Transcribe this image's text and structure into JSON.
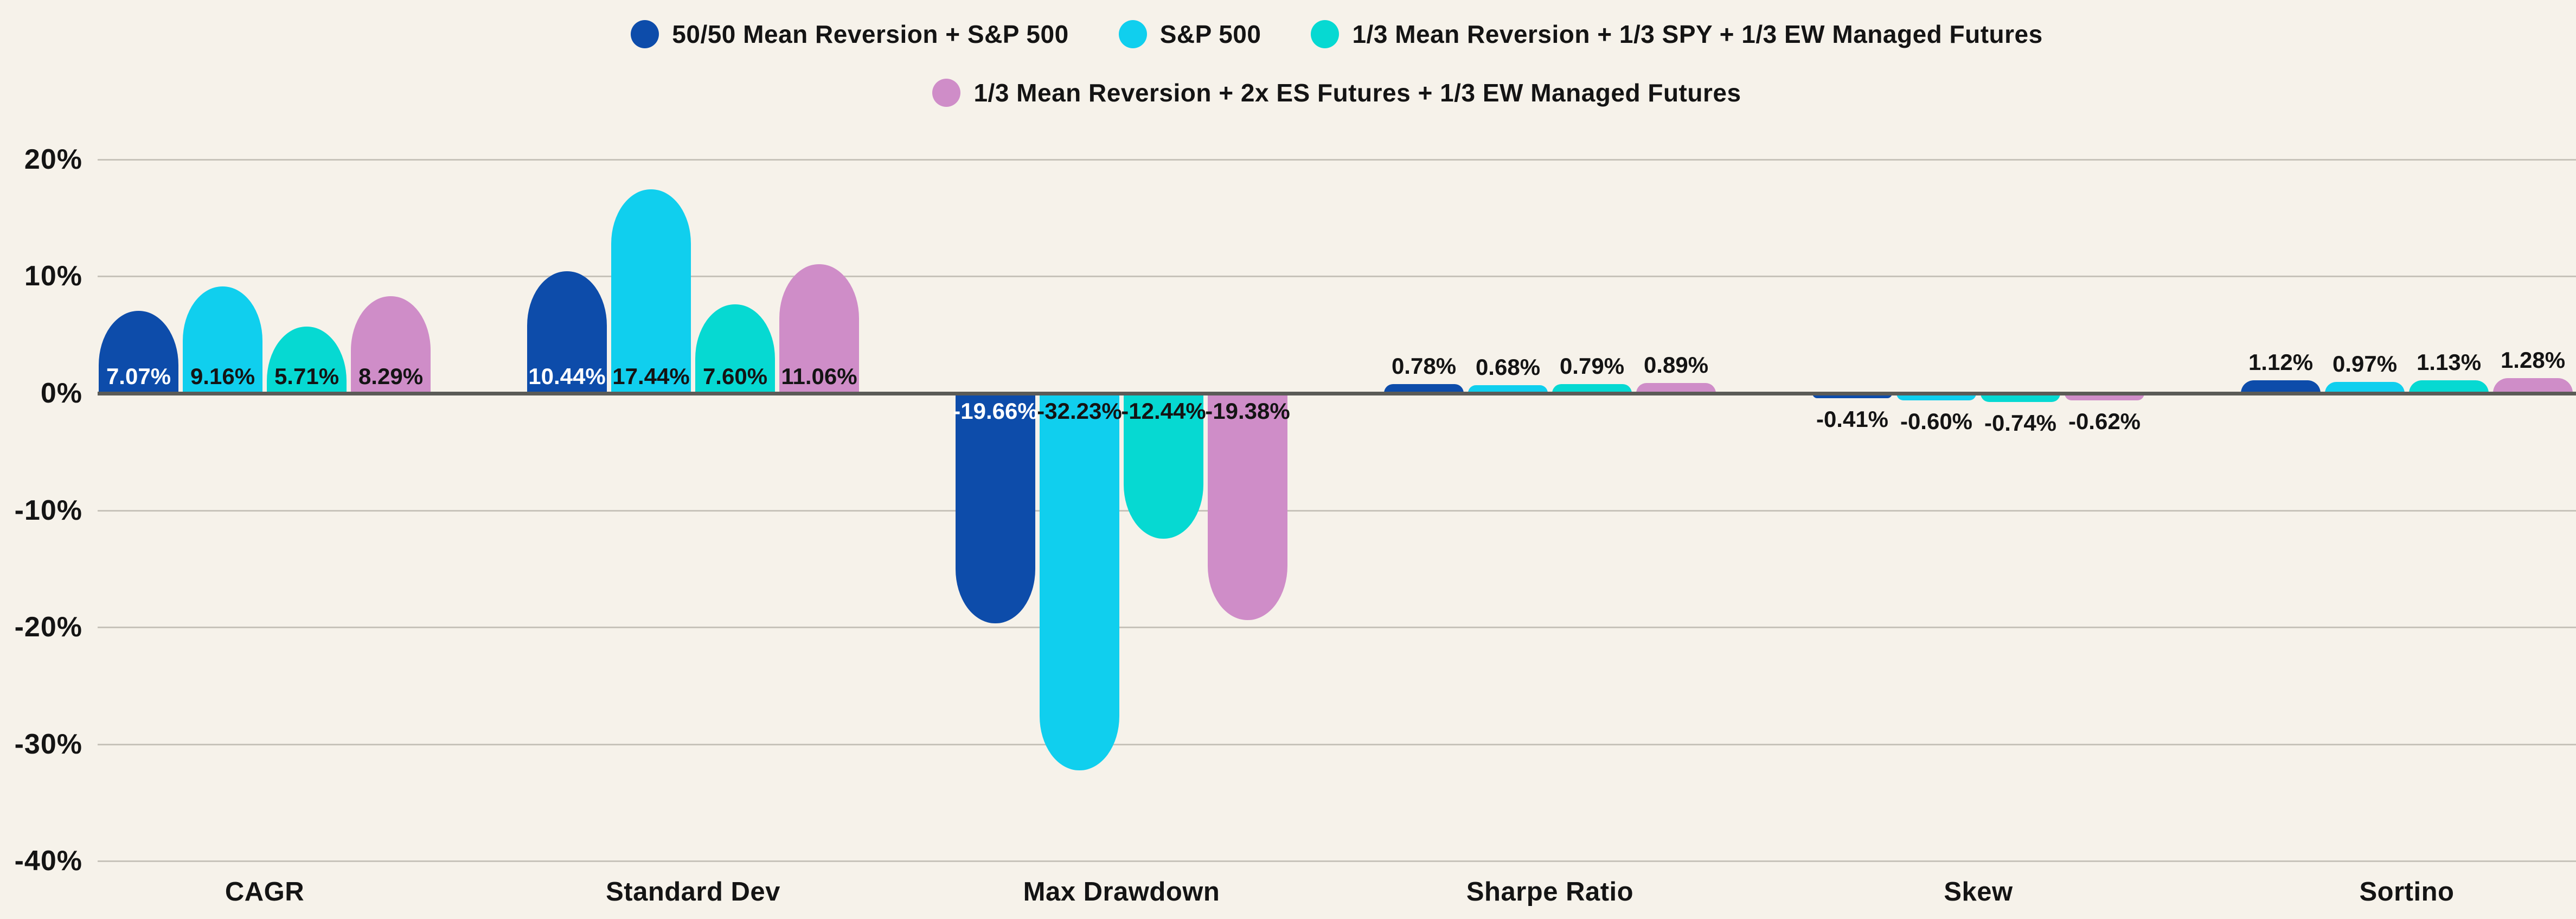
{
  "colors": {
    "background": "#f6f2ea",
    "gridline": "#c7c3ba",
    "zero_line": "#5b5b57",
    "text": "#141414"
  },
  "legend": {
    "rows": [
      [
        0,
        1,
        2
      ],
      [
        3
      ]
    ]
  },
  "chart_data": {
    "type": "bar",
    "title": "",
    "xlabel": "",
    "ylabel": "",
    "grid": true,
    "legend_position": "top",
    "ylim": [
      -40,
      20
    ],
    "categories": [
      "CAGR",
      "Standard Dev",
      "Max Drawdown",
      "Sharpe Ratio",
      "Skew",
      "Sortino"
    ],
    "label_placement_by_category": [
      "inside-bottom",
      "inside-bottom",
      "inside-top",
      "above",
      "below",
      "above"
    ],
    "y_ticks": [
      {
        "label": "20%",
        "value": 20
      },
      {
        "label": "10%",
        "value": 10
      },
      {
        "label": "0%",
        "value": 0
      },
      {
        "label": "-10%",
        "value": -10
      },
      {
        "label": "-20%",
        "value": -20
      },
      {
        "label": "-30%",
        "value": -30
      },
      {
        "label": "-40%",
        "value": -40
      }
    ],
    "series": [
      {
        "name": "50/50 Mean Reversion + S&P 500",
        "color": "#0d4caa",
        "inside_label_color": "#ffffff",
        "values": [
          7.07,
          10.44,
          -19.66,
          0.78,
          -0.41,
          1.12
        ],
        "labels": [
          "7.07%",
          "10.44%",
          "-19.66%",
          "0.78%",
          "-0.41%",
          "1.12%"
        ]
      },
      {
        "name": "S&P 500",
        "color": "#10cfee",
        "inside_label_color": "#141414",
        "values": [
          9.16,
          17.44,
          -32.23,
          0.68,
          -0.6,
          0.97
        ],
        "labels": [
          "9.16%",
          "17.44%",
          "-32.23%",
          "0.68%",
          "-0.60%",
          "0.97%"
        ]
      },
      {
        "name": "1/3 Mean Reversion + 1/3 SPY + 1/3 EW Managed Futures",
        "color": "#06d9d2",
        "inside_label_color": "#141414",
        "values": [
          5.71,
          7.6,
          -12.44,
          0.79,
          -0.74,
          1.13
        ],
        "labels": [
          "5.71%",
          "7.60%",
          "-12.44%",
          "0.79%",
          "-0.74%",
          "1.13%"
        ]
      },
      {
        "name": "1/3 Mean Reversion + 2x ES Futures + 1/3 EW Managed Futures",
        "color": "#cf8dc8",
        "inside_label_color": "#141414",
        "values": [
          8.29,
          11.06,
          -19.38,
          0.89,
          -0.62,
          1.28
        ],
        "labels": [
          "8.29%",
          "11.06%",
          "-19.38%",
          "0.89%",
          "-0.62%",
          "1.28%"
        ]
      }
    ]
  }
}
